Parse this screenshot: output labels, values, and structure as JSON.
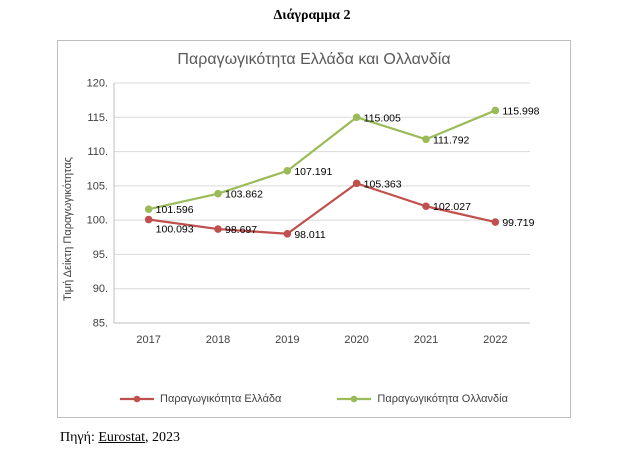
{
  "page": {
    "heading": "Διάγραμμα 2",
    "source_prefix": "Πηγή: ",
    "source_link": "Eurostat",
    "source_suffix": ", 2023"
  },
  "chart_data": {
    "type": "line",
    "title": "Παραγωγικότητα Ελλάδα και Ολλανδία",
    "ylabel": "Τιμή Δείκτη Παραγωγικότητας",
    "xlabel": "",
    "categories": [
      "2017",
      "2018",
      "2019",
      "2020",
      "2021",
      "2022"
    ],
    "series": [
      {
        "name": "Παραγωγικότητα Ελλάδα",
        "color": "#C0504D",
        "values": [
          100.093,
          98.697,
          98.011,
          105.363,
          102.027,
          99.719
        ],
        "labels": [
          "100.093",
          "98.697",
          "98.011",
          "105.363",
          "102.027",
          "99.719"
        ]
      },
      {
        "name": "Παραγωγικότητα Ολλανδία",
        "color": "#9BBB59",
        "values": [
          101.596,
          103.862,
          107.191,
          115.005,
          111.792,
          115.998
        ],
        "labels": [
          "101.596",
          "103.862",
          "107.191",
          "115.005",
          "111.792",
          "115.998"
        ]
      }
    ],
    "ylim": [
      85,
      120
    ],
    "ytick_step": 5,
    "ytick_labels": [
      "85.",
      "90.",
      "95.",
      "100.",
      "105.",
      "110.",
      "115.",
      "120."
    ],
    "grid": true,
    "legend_position": "bottom",
    "grid_color": "#d9d9d9",
    "axis_color": "#bfbfbf",
    "tick_text_color": "#404040",
    "data_label_color": "#000000"
  }
}
